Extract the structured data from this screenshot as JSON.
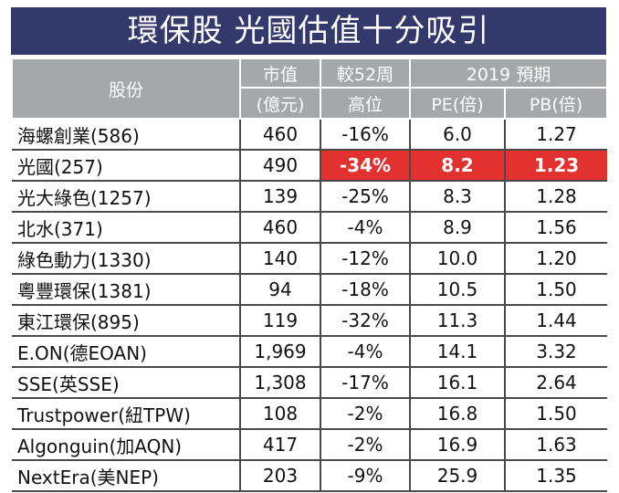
{
  "title": "環保股 光國估值十分吸引",
  "header": {
    "stock": "股份",
    "mcap_line1": "市值",
    "mcap_line2": "(億元)",
    "change_line1": "較52周",
    "change_line2": "高位",
    "forecast": "2019 預期",
    "pe": "PE(倍)",
    "pb": "PB(倍)"
  },
  "rows": [
    {
      "name": "海螺創業(586)",
      "mcap": "460",
      "change": "-16%",
      "pe": "6.0",
      "pb": "1.27"
    },
    {
      "name": "光國(257)",
      "mcap": "490",
      "change": "-34%",
      "pe": "8.2",
      "pb": "1.23"
    },
    {
      "name": "光大綠色(1257)",
      "mcap": "139",
      "change": "-25%",
      "pe": "8.3",
      "pb": "1.28"
    },
    {
      "name": "北水(371)",
      "mcap": "460",
      "change": "-4%",
      "pe": "8.9",
      "pb": "1.56"
    },
    {
      "name": "綠色動力(1330)",
      "mcap": "140",
      "change": "-12%",
      "pe": "10.0",
      "pb": "1.20"
    },
    {
      "name": "粵豐環保(1381)",
      "mcap": "94",
      "change": "-18%",
      "pe": "10.5",
      "pb": "1.50"
    },
    {
      "name": "東江環保(895)",
      "mcap": "119",
      "change": "-32%",
      "pe": "11.3",
      "pb": "1.44"
    },
    {
      "name": "E.ON(德EOAN)",
      "mcap": "1,969",
      "change": "-4%",
      "pe": "14.1",
      "pb": "3.32"
    },
    {
      "name": "SSE(英SSE)",
      "mcap": "1,308",
      "change": "-17%",
      "pe": "16.1",
      "pb": "2.64"
    },
    {
      "name": "Trustpower(紐TPW)",
      "mcap": "108",
      "change": "-2%",
      "pe": "16.8",
      "pb": "1.50"
    },
    {
      "name": "Algonguin(加AQN)",
      "mcap": "417",
      "change": "-2%",
      "pe": "16.9",
      "pb": "1.63"
    },
    {
      "name": "NextEra(美NEP)",
      "mcap": "203",
      "change": "-9%",
      "pe": "25.9",
      "pb": "1.35"
    }
  ],
  "colors": {
    "title_bg": "#34396b",
    "header_bg": "#a5a7aa",
    "highlight": "#e3312f"
  }
}
